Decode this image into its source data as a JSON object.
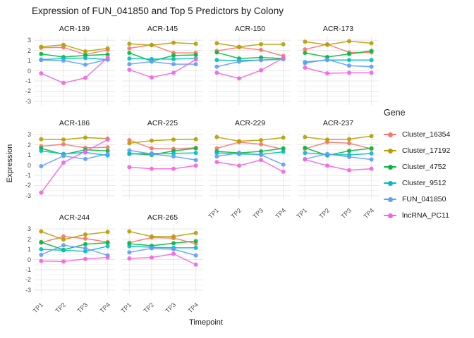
{
  "chart_data": {
    "type": "line",
    "title": "Expression of FUN_041850 and Top 5 Predictors by Colony",
    "xlabel": "Timepoint",
    "ylabel": "Expression",
    "legend_title": "Gene",
    "legend_position": "right",
    "x": [
      "TP1",
      "TP2",
      "TP3",
      "TP4"
    ],
    "ylim": [
      -3,
      3
    ],
    "yticks": [
      3,
      2,
      1,
      0,
      -1,
      -2,
      -3
    ],
    "grid": true,
    "genes": [
      {
        "name": "Cluster_16354",
        "color": "#F8766D"
      },
      {
        "name": "Cluster_17192",
        "color": "#B79F00"
      },
      {
        "name": "Cluster_4752",
        "color": "#00BA38"
      },
      {
        "name": "Cluster_9512",
        "color": "#00BFC4"
      },
      {
        "name": "FUN_041850",
        "color": "#619CFF"
      },
      {
        "name": "lncRNA_PC11",
        "color": "#F564E2"
      }
    ],
    "facets": [
      {
        "colony": "ACR-139",
        "row": 0,
        "col": 0,
        "series": {
          "Cluster_16354": [
            2.25,
            2.3,
            1.6,
            2.05
          ],
          "Cluster_17192": [
            2.35,
            2.55,
            1.9,
            2.2
          ],
          "Cluster_4752": [
            1.65,
            1.35,
            1.5,
            1.6
          ],
          "Cluster_9512": [
            1.1,
            1.2,
            1.25,
            1.1
          ],
          "FUN_041850": [
            1.05,
            1.0,
            0.6,
            1.1
          ],
          "lncRNA_PC11": [
            -0.25,
            -1.2,
            -0.7,
            1.3
          ]
        }
      },
      {
        "colony": "ACR-145",
        "row": 0,
        "col": 1,
        "series": {
          "Cluster_16354": [
            2.2,
            2.55,
            1.75,
            1.75
          ],
          "Cluster_17192": [
            2.65,
            2.5,
            2.75,
            2.65
          ],
          "Cluster_4752": [
            1.75,
            0.95,
            1.5,
            1.55
          ],
          "Cluster_9512": [
            1.2,
            1.15,
            1.15,
            1.2
          ],
          "FUN_041850": [
            0.65,
            0.9,
            0.65,
            0.65
          ],
          "lncRNA_PC11": [
            0.1,
            -0.65,
            -0.2,
            1.1
          ]
        }
      },
      {
        "colony": "ACR-150",
        "row": 0,
        "col": 2,
        "series": {
          "Cluster_16354": [
            1.95,
            2.3,
            2.05,
            1.45
          ],
          "Cluster_17192": [
            2.7,
            2.35,
            2.6,
            2.6
          ],
          "Cluster_4752": [
            1.8,
            1.2,
            1.3,
            1.2
          ],
          "Cluster_9512": [
            1.05,
            1.0,
            1.05,
            1.15
          ],
          "FUN_041850": [
            0.4,
            0.9,
            1.05,
            1.15
          ],
          "lncRNA_PC11": [
            -0.2,
            -0.75,
            0.05,
            1.25
          ]
        }
      },
      {
        "colony": "ACR-173",
        "row": 0,
        "col": 3,
        "series": {
          "Cluster_16354": [
            2.1,
            2.6,
            1.8,
            1.8
          ],
          "Cluster_17192": [
            2.85,
            2.55,
            2.9,
            2.7
          ],
          "Cluster_4752": [
            1.75,
            1.35,
            1.65,
            1.95
          ],
          "Cluster_9512": [
            0.85,
            1.05,
            1.05,
            1.05
          ],
          "FUN_041850": [
            0.75,
            1.1,
            0.5,
            0.4
          ],
          "lncRNA_PC11": [
            0.3,
            -0.25,
            -0.2,
            -0.2
          ]
        }
      },
      {
        "colony": "ACR-186",
        "row": 1,
        "col": 0,
        "series": {
          "Cluster_16354": [
            1.85,
            2.05,
            1.7,
            1.75
          ],
          "Cluster_17192": [
            2.55,
            2.5,
            2.7,
            2.6
          ],
          "Cluster_4752": [
            1.65,
            1.05,
            1.5,
            1.4
          ],
          "Cluster_9512": [
            1.4,
            1.1,
            1.25,
            0.95
          ],
          "FUN_041850": [
            -0.1,
            0.9,
            0.6,
            1.1
          ],
          "lncRNA_PC11": [
            -2.7,
            0.25,
            1.35,
            2.5
          ]
        }
      },
      {
        "colony": "ACR-225",
        "row": 1,
        "col": 1,
        "series": {
          "Cluster_16354": [
            2.45,
            1.65,
            1.6,
            1.7
          ],
          "Cluster_17192": [
            2.15,
            2.4,
            2.5,
            2.55
          ],
          "Cluster_4752": [
            1.15,
            1.0,
            1.4,
            1.65
          ],
          "Cluster_9512": [
            1.1,
            1.15,
            1.15,
            1.2
          ],
          "FUN_041850": [
            1.45,
            1.1,
            0.85,
            0.5
          ],
          "lncRNA_PC11": [
            -0.2,
            -0.35,
            -0.35,
            -0.05
          ]
        }
      },
      {
        "colony": "ACR-229",
        "row": 1,
        "col": 2,
        "series": {
          "Cluster_16354": [
            1.65,
            2.25,
            2.05,
            1.55
          ],
          "Cluster_17192": [
            2.75,
            2.35,
            2.45,
            2.7
          ],
          "Cluster_4752": [
            1.35,
            1.2,
            1.35,
            1.65
          ],
          "Cluster_9512": [
            1.2,
            1.1,
            1.05,
            1.3
          ],
          "FUN_041850": [
            0.85,
            1.2,
            1.0,
            0.05
          ],
          "lncRNA_PC11": [
            0.3,
            -0.05,
            0.5,
            -0.65
          ]
        }
      },
      {
        "colony": "ACR-237",
        "row": 1,
        "col": 3,
        "series": {
          "Cluster_16354": [
            1.6,
            2.25,
            2.15,
            1.6
          ],
          "Cluster_17192": [
            2.75,
            2.5,
            2.55,
            2.85
          ],
          "Cluster_4752": [
            1.7,
            0.95,
            1.4,
            1.65
          ],
          "Cluster_9512": [
            1.2,
            1.05,
            1.0,
            1.15
          ],
          "FUN_041850": [
            0.6,
            1.1,
            0.8,
            0.55
          ],
          "lncRNA_PC11": [
            0.55,
            -0.05,
            -0.5,
            -0.35
          ]
        }
      },
      {
        "colony": "ACR-244",
        "row": 2,
        "col": 0,
        "series": {
          "Cluster_16354": [
            1.65,
            2.25,
            2.05,
            1.7
          ],
          "Cluster_17192": [
            2.75,
            1.95,
            2.45,
            2.7
          ],
          "Cluster_4752": [
            1.7,
            0.95,
            1.5,
            1.65
          ],
          "Cluster_9512": [
            1.0,
            0.9,
            0.8,
            1.3
          ],
          "FUN_041850": [
            0.45,
            1.4,
            1.1,
            0.4
          ],
          "lncRNA_PC11": [
            -0.15,
            -0.2,
            0.05,
            0.2
          ]
        }
      },
      {
        "colony": "ACR-265",
        "row": 2,
        "col": 1,
        "series": {
          "Cluster_16354": [
            1.65,
            2.15,
            2.1,
            1.55
          ],
          "Cluster_17192": [
            2.75,
            2.25,
            2.25,
            2.6
          ],
          "Cluster_4752": [
            1.55,
            1.35,
            1.6,
            1.8
          ],
          "Cluster_9512": [
            1.3,
            1.2,
            1.15,
            1.15
          ],
          "FUN_041850": [
            0.7,
            1.1,
            1.0,
            0.4
          ],
          "lncRNA_PC11": [
            0.1,
            0.2,
            0.55,
            -0.5
          ]
        }
      }
    ]
  }
}
